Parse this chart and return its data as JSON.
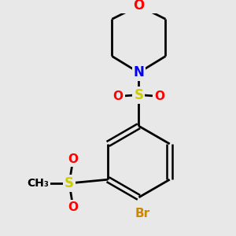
{
  "background_color": "#e8e8e8",
  "atom_colors": {
    "C": "#000000",
    "O": "#ff0000",
    "N": "#0000ee",
    "S": "#cccc00",
    "Br": "#cc8800"
  },
  "bond_color": "#000000",
  "bond_width": 2.0,
  "figsize": [
    3.0,
    3.0
  ],
  "dpi": 100
}
